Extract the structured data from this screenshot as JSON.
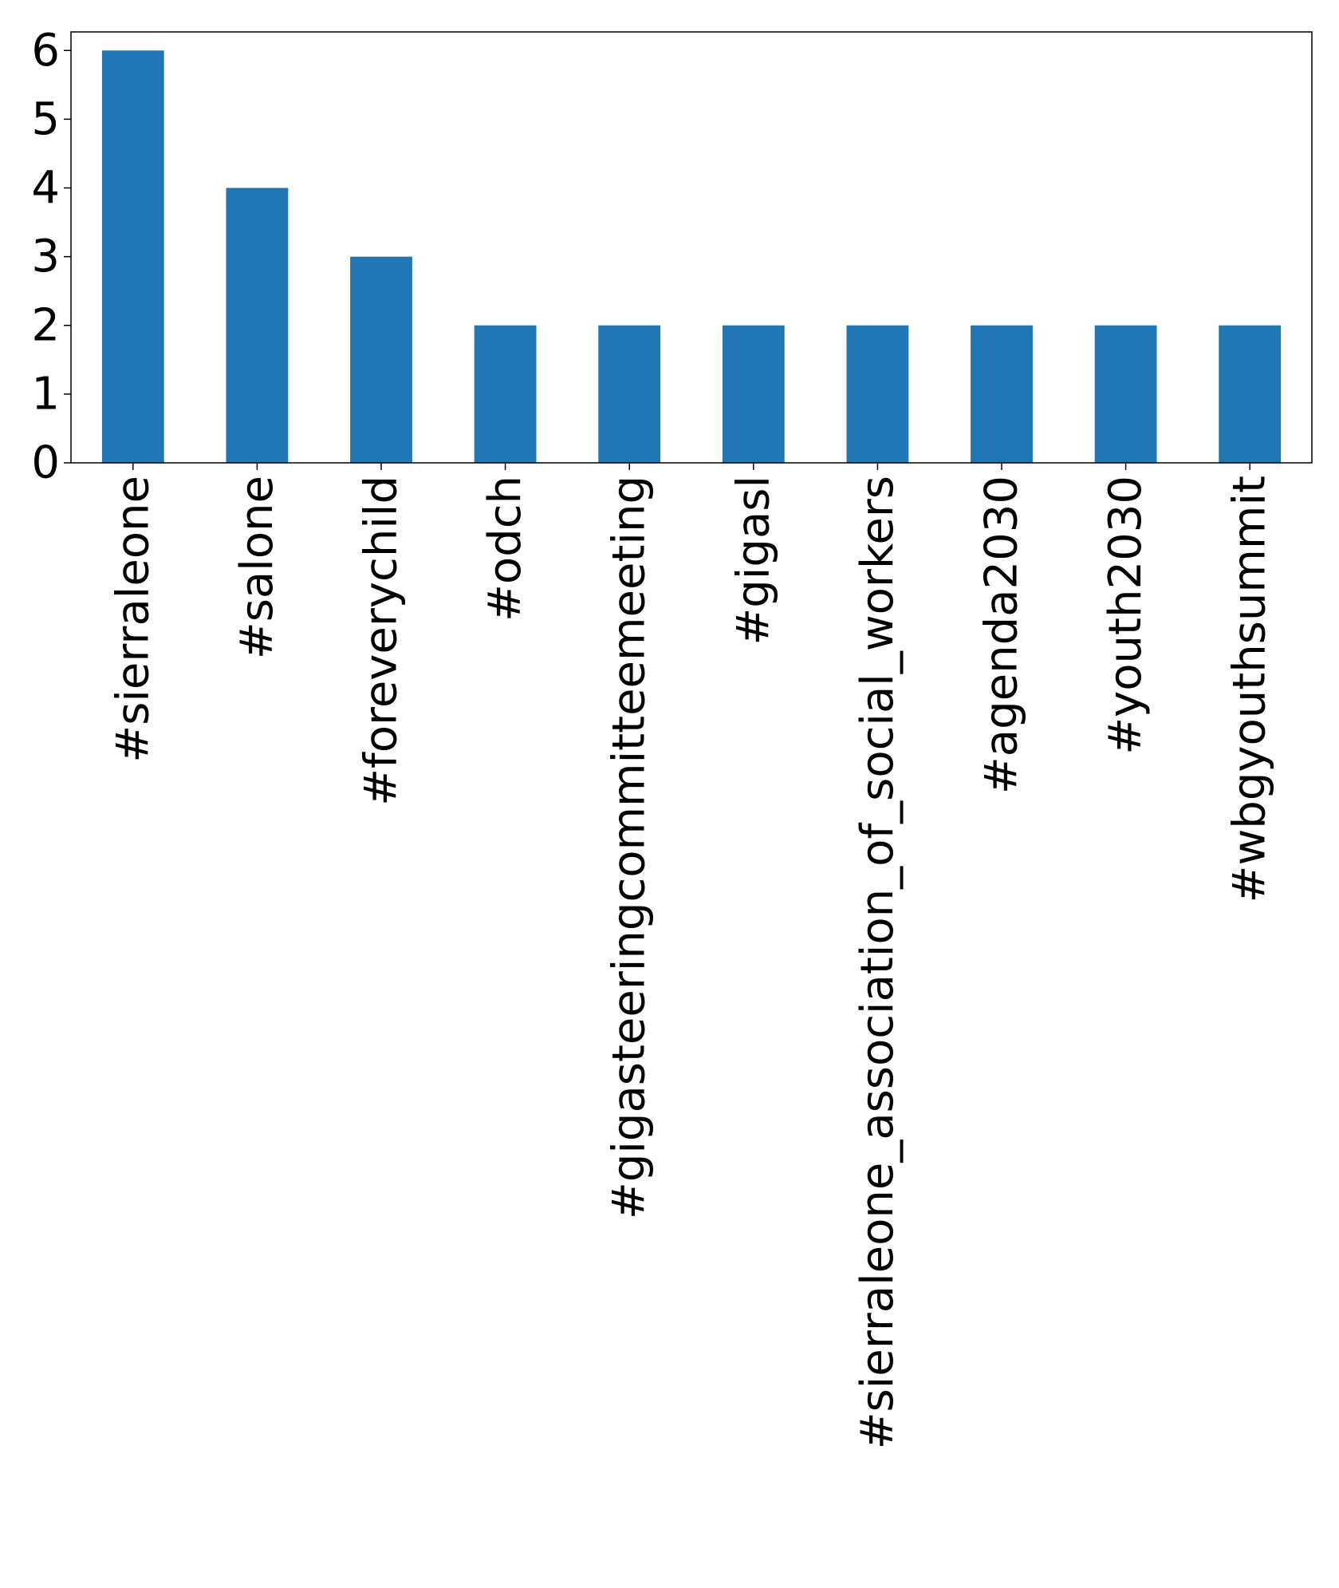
{
  "chart_data": {
    "type": "bar",
    "title": "",
    "xlabel": "",
    "ylabel": "",
    "categories": [
      "#sierraleone",
      "#salone",
      "#foreverychild",
      "#odch",
      "#gigasteeringcommitteemeeting",
      "#gigasl",
      "#sierraleone_association_of_social_workers",
      "#agenda2030",
      "#youth2030",
      "#wbgyouthsummit"
    ],
    "values": [
      6,
      4,
      3,
      2,
      2,
      2,
      2,
      2,
      2,
      2
    ],
    "ylim": [
      0,
      6.27
    ],
    "yticks": [
      "0",
      "1",
      "2",
      "3",
      "4",
      "5",
      "6"
    ],
    "grid": false,
    "legend": "none",
    "colors": {
      "bar": "#2077b4",
      "axis": "#000000"
    }
  }
}
